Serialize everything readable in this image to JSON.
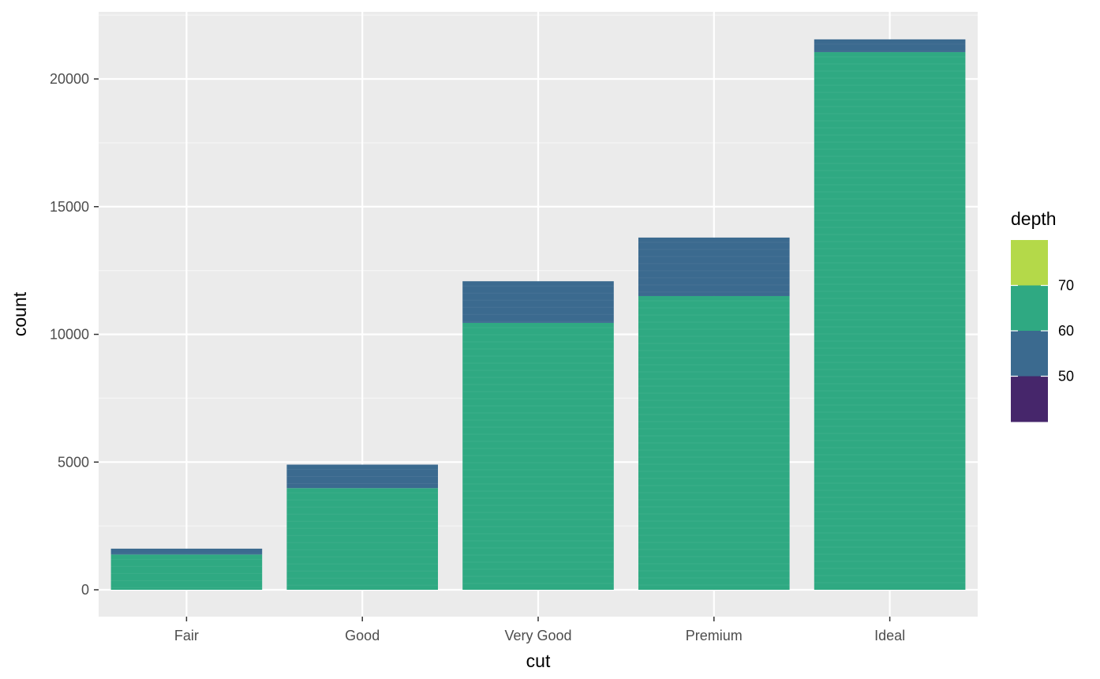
{
  "chart_data": {
    "type": "bar",
    "stacked": true,
    "categories": [
      "Fair",
      "Good",
      "Very Good",
      "Premium",
      "Ideal"
    ],
    "xlabel": "cut",
    "ylabel": "count",
    "ylim": [
      0,
      22500
    ],
    "yticks": [
      0,
      5000,
      10000,
      15000,
      20000
    ],
    "grid": true,
    "series": [
      {
        "depth_range": "50-60",
        "color": "#2FA982",
        "values": [
          1380,
          3980,
          10450,
          11500,
          21050
        ]
      },
      {
        "depth_range": "60-70",
        "color": "#3B6A8F",
        "values": [
          230,
          920,
          1630,
          2290,
          500
        ]
      }
    ],
    "legend": {
      "title": "depth",
      "placement": "right",
      "labels": [
        "70",
        "60",
        "50"
      ],
      "colors": [
        "#B4D949",
        "#2FA982",
        "#3B6A8F",
        "#46266B"
      ]
    }
  }
}
